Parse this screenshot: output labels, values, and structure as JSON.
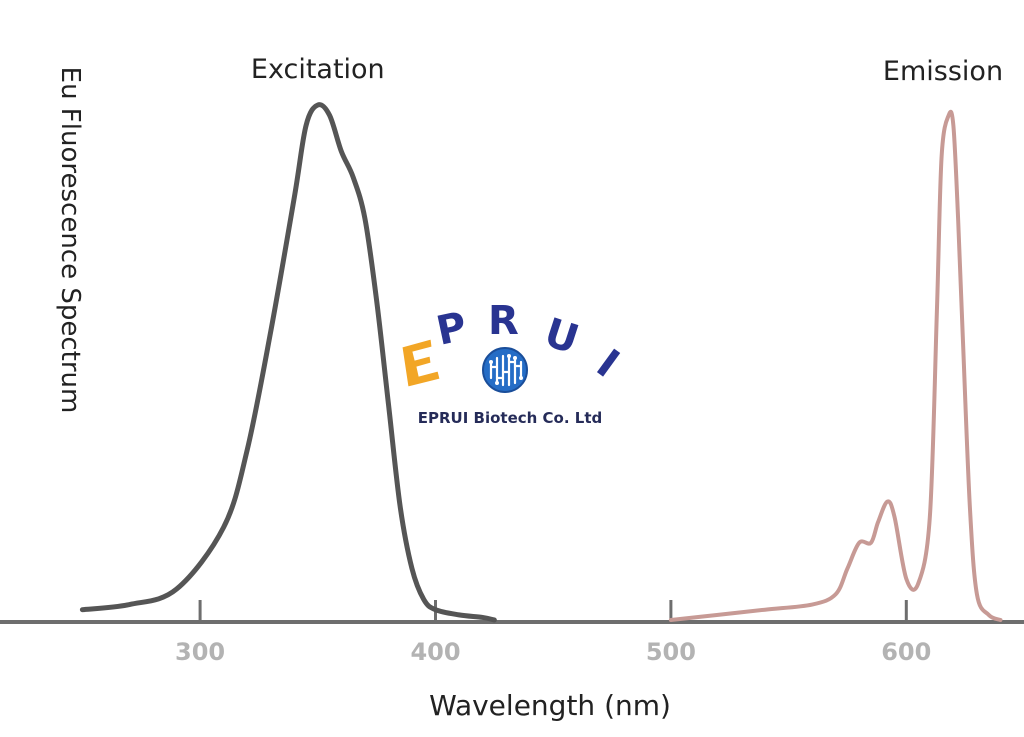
{
  "chart_data": {
    "type": "line",
    "title": "",
    "xlabel": "Wavelength (nm)",
    "ylabel": "Eu Fluorescence Spectrum",
    "xlim": [
      215,
      650
    ],
    "ylim": [
      0,
      1.0
    ],
    "x_ticks": [
      300,
      400,
      500,
      600
    ],
    "x_tick_labels": [
      "300",
      "400",
      "500",
      "600"
    ],
    "grid": false,
    "series": [
      {
        "name": "Excitation",
        "color": "#555555",
        "x": [
          250,
          270,
          290,
          310,
          320,
          330,
          340,
          345,
          350,
          355,
          360,
          365,
          370,
          375,
          380,
          385,
          390,
          395,
          400,
          410,
          420,
          425
        ],
        "y": [
          0.02,
          0.03,
          0.06,
          0.18,
          0.33,
          0.56,
          0.82,
          0.96,
          1.0,
          0.98,
          0.91,
          0.86,
          0.78,
          0.62,
          0.42,
          0.22,
          0.1,
          0.04,
          0.02,
          0.01,
          0.005,
          0.0
        ]
      },
      {
        "name": "Emission",
        "color": "#c79a95",
        "x": [
          500,
          520,
          540,
          560,
          570,
          575,
          580,
          585,
          588,
          592,
          595,
          600,
          605,
          610,
          613,
          615,
          618,
          620,
          622,
          624,
          627,
          630,
          635,
          640
        ],
        "y": [
          0.0,
          0.01,
          0.02,
          0.03,
          0.05,
          0.1,
          0.15,
          0.15,
          0.19,
          0.23,
          0.2,
          0.08,
          0.07,
          0.2,
          0.6,
          0.9,
          0.98,
          0.96,
          0.78,
          0.55,
          0.22,
          0.05,
          0.01,
          0.0
        ]
      }
    ]
  },
  "watermark": {
    "logo_text": "EPRUI",
    "company": "EPRUI Biotech Co. Ltd"
  }
}
